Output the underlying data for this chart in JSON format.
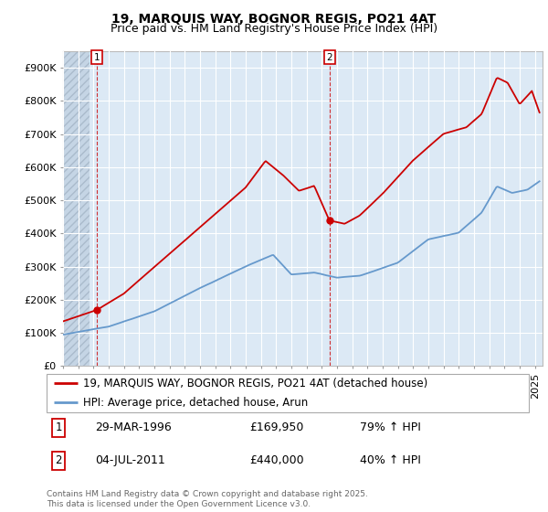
{
  "title": "19, MARQUIS WAY, BOGNOR REGIS, PO21 4AT",
  "subtitle": "Price paid vs. HM Land Registry's House Price Index (HPI)",
  "ylim": [
    0,
    950000
  ],
  "yticks": [
    0,
    100000,
    200000,
    300000,
    400000,
    500000,
    600000,
    700000,
    800000,
    900000
  ],
  "ytick_labels": [
    "£0",
    "£100K",
    "£200K",
    "£300K",
    "£400K",
    "£500K",
    "£600K",
    "£700K",
    "£800K",
    "£900K"
  ],
  "xlim_start": 1994.0,
  "xlim_end": 2025.5,
  "red_line_color": "#cc0000",
  "blue_line_color": "#6699cc",
  "plot_bg_color": "#dce9f5",
  "background_color": "#ffffff",
  "grid_color": "#ffffff",
  "hatch_facecolor": "#c5d5e5",
  "sale1_x": 1996.24,
  "sale1_y": 169950,
  "sale1_label": "1",
  "sale2_x": 2011.5,
  "sale2_y": 440000,
  "sale2_label": "2",
  "legend_line1": "19, MARQUIS WAY, BOGNOR REGIS, PO21 4AT (detached house)",
  "legend_line2": "HPI: Average price, detached house, Arun",
  "annotation1_date": "29-MAR-1996",
  "annotation1_price": "£169,950",
  "annotation1_hpi": "79% ↑ HPI",
  "annotation2_date": "04-JUL-2011",
  "annotation2_price": "£440,000",
  "annotation2_hpi": "40% ↑ HPI",
  "copyright_text": "Contains HM Land Registry data © Crown copyright and database right 2025.\nThis data is licensed under the Open Government Licence v3.0.",
  "hatch_x_end": 1995.75,
  "title_fontsize": 10,
  "subtitle_fontsize": 9,
  "tick_fontsize": 8,
  "legend_fontsize": 8.5,
  "annotation_fontsize": 9
}
